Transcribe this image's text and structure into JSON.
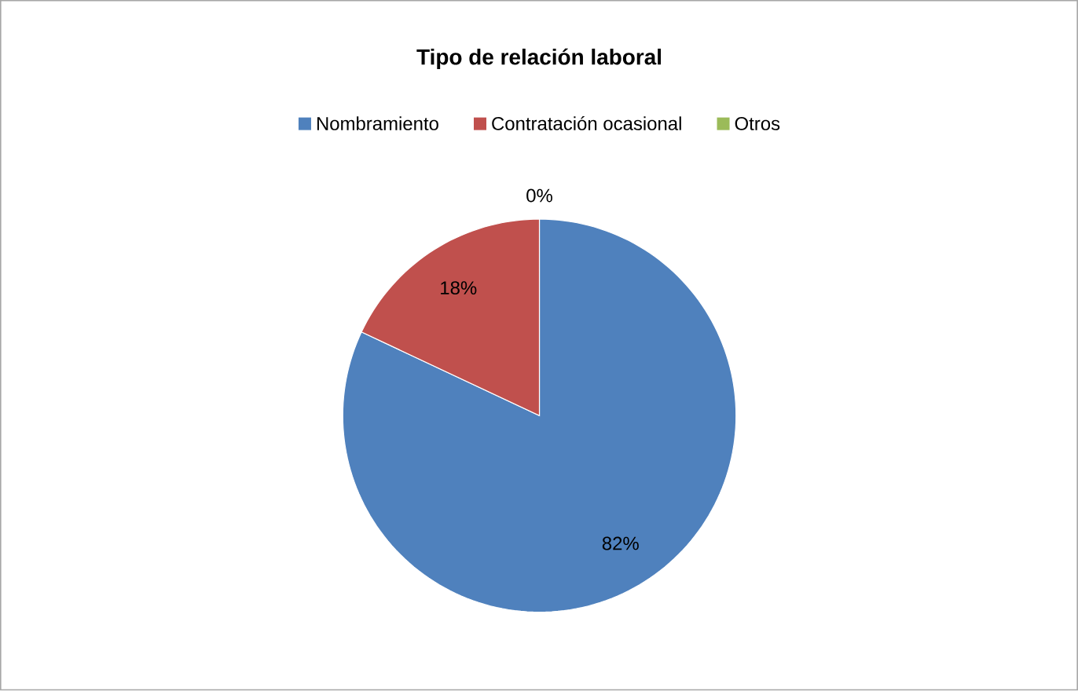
{
  "chart_data": {
    "type": "pie",
    "title": "Tipo de relación laboral",
    "categories": [
      "Nombramiento",
      "Contratación ocasional",
      "Otros"
    ],
    "values": [
      82,
      18,
      0
    ],
    "colors": [
      "#4f81bd",
      "#c0504d",
      "#9bbb59"
    ],
    "value_labels": [
      "82%",
      "18%",
      "0%"
    ],
    "legend": "top"
  }
}
